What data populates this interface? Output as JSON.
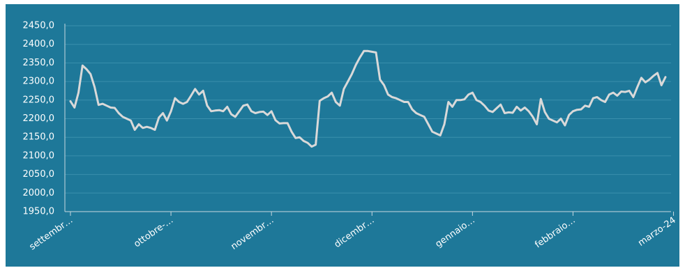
{
  "chart_data": {
    "type": "line",
    "title": "",
    "xlabel": "",
    "ylabel": "",
    "ylim": [
      1950,
      2450
    ],
    "y_ticks": [
      "1950,0",
      "2000,0",
      "2050,0",
      "2100,0",
      "2150,0",
      "2200,0",
      "2250,0",
      "2300,0",
      "2350,0",
      "2400,0",
      "2450,0"
    ],
    "y_tick_values": [
      1950,
      2000,
      2050,
      2100,
      2150,
      2200,
      2250,
      2300,
      2350,
      2400,
      2450
    ],
    "x_ticks": [
      "settembr…",
      "ottobre-…",
      "novembr…",
      "dicembr…",
      "gennaio…",
      "febbraio…",
      "marzo-24"
    ],
    "x_tick_index": [
      0,
      25,
      50,
      75,
      100,
      125,
      150
    ],
    "grid": true,
    "colors": {
      "background": "#1e7899",
      "grid": "#3a8fad",
      "axis": "#c8d8e0",
      "line": "#d9d9d9"
    },
    "series": [
      {
        "name": "",
        "values": [
          2247,
          2230,
          2270,
          2343,
          2333,
          2320,
          2285,
          2237,
          2240,
          2235,
          2230,
          2229,
          2215,
          2205,
          2200,
          2195,
          2170,
          2185,
          2175,
          2178,
          2175,
          2170,
          2203,
          2215,
          2195,
          2220,
          2255,
          2245,
          2240,
          2245,
          2262,
          2280,
          2265,
          2275,
          2235,
          2220,
          2222,
          2223,
          2220,
          2232,
          2212,
          2205,
          2220,
          2235,
          2238,
          2220,
          2215,
          2218,
          2219,
          2210,
          2220,
          2196,
          2187,
          2188,
          2188,
          2165,
          2148,
          2150,
          2140,
          2135,
          2125,
          2130,
          2248,
          2255,
          2260,
          2270,
          2245,
          2235,
          2280,
          2300,
          2320,
          2345,
          2365,
          2382,
          2382,
          2380,
          2378,
          2305,
          2290,
          2265,
          2258,
          2255,
          2250,
          2245,
          2245,
          2225,
          2215,
          2210,
          2205,
          2185,
          2165,
          2160,
          2155,
          2185,
          2245,
          2232,
          2250,
          2250,
          2252,
          2265,
          2270,
          2250,
          2245,
          2235,
          2222,
          2218,
          2228,
          2238,
          2215,
          2217,
          2216,
          2232,
          2222,
          2230,
          2220,
          2205,
          2185,
          2253,
          2218,
          2200,
          2195,
          2190,
          2200,
          2182,
          2210,
          2220,
          2224,
          2225,
          2235,
          2232,
          2255,
          2258,
          2250,
          2245,
          2265,
          2270,
          2262,
          2273,
          2272,
          2275,
          2258,
          2285,
          2310,
          2298,
          2305,
          2315,
          2323,
          2290,
          2312
        ]
      }
    ]
  }
}
